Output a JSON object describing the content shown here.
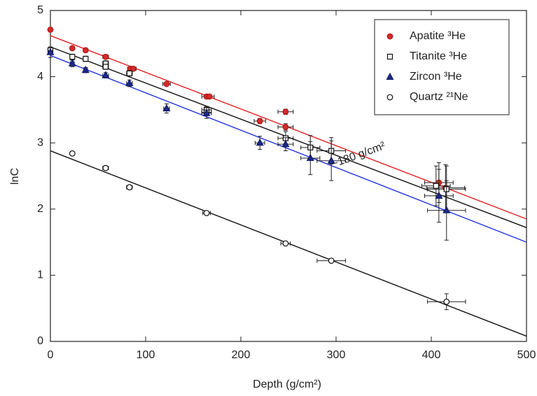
{
  "chart_data": {
    "type": "scatter",
    "xlabel": "Depth (g/cm²)",
    "ylabel": "lnC",
    "xlim": [
      0,
      500
    ],
    "ylim": [
      0,
      5
    ],
    "xticks": [
      0,
      100,
      200,
      300,
      400,
      500
    ],
    "yticks": [
      0,
      1,
      2,
      3,
      4,
      5
    ],
    "legend": "upper right",
    "annotation": "~180 g/cm²",
    "series": [
      {
        "name": "Apatite ³He",
        "color": "#b01818",
        "fill": "#d42a2a",
        "marker": "circle",
        "x": [
          0,
          23,
          37,
          58,
          84,
          87,
          122,
          164,
          167,
          220,
          247,
          247,
          408,
          415
        ],
        "values": [
          4.71,
          4.43,
          4.4,
          4.3,
          4.12,
          4.12,
          3.89,
          3.7,
          3.7,
          3.33,
          3.47,
          3.24,
          2.4,
          2.32
        ],
        "xerr": [
          2,
          2,
          2,
          3,
          3,
          3,
          4,
          5,
          5,
          6,
          8,
          8,
          15,
          20
        ],
        "yerr": [
          0.03,
          0.03,
          0.03,
          0.03,
          0.03,
          0.03,
          0.03,
          0.03,
          0.03,
          0.04,
          0.04,
          0.05,
          0.3,
          0.35
        ],
        "fit": {
          "color": "#e02020",
          "x": [
            0,
            500
          ],
          "values": [
            4.62,
            1.85
          ]
        }
      },
      {
        "name": "Titanite ³He",
        "color": "#111111",
        "fill": "#ffffff",
        "marker": "square",
        "x": [
          0,
          23,
          37,
          58,
          58,
          83,
          164,
          164,
          247,
          273,
          295,
          405,
          416
        ],
        "values": [
          4.4,
          4.3,
          4.27,
          4.2,
          4.15,
          4.05,
          3.5,
          3.46,
          3.07,
          2.93,
          2.88,
          2.35,
          2.3
        ],
        "xerr": [
          2,
          2,
          2,
          3,
          3,
          3,
          5,
          5,
          8,
          10,
          15,
          15,
          20
        ],
        "yerr": [
          0.05,
          0.04,
          0.04,
          0.04,
          0.04,
          0.04,
          0.05,
          0.05,
          0.1,
          0.18,
          0.2,
          0.3,
          0.35
        ],
        "fit": {
          "color": "#111111",
          "x": [
            0,
            500
          ],
          "values": [
            4.45,
            1.72
          ]
        }
      },
      {
        "name": "Zircon ³He",
        "color": "#111a66",
        "fill": "#1c2a8c",
        "marker": "triangle",
        "x": [
          0,
          23,
          37,
          58,
          83,
          122,
          164,
          220,
          247,
          273,
          295,
          408,
          416
        ],
        "values": [
          4.37,
          4.2,
          4.1,
          4.02,
          3.9,
          3.52,
          3.45,
          3.0,
          2.98,
          2.77,
          2.73,
          2.2,
          1.98
        ],
        "xerr": [
          2,
          2,
          2,
          3,
          3,
          3,
          5,
          5,
          8,
          10,
          15,
          15,
          20
        ],
        "yerr": [
          0.08,
          0.05,
          0.04,
          0.04,
          0.05,
          0.07,
          0.08,
          0.1,
          0.1,
          0.25,
          0.3,
          0.4,
          0.45
        ],
        "fit": {
          "color": "#2233dd",
          "x": [
            0,
            500
          ],
          "values": [
            4.32,
            1.5
          ]
        }
      },
      {
        "name": "Quartz ²¹Ne",
        "color": "#111111",
        "fill": "#ffffff",
        "marker": "circle",
        "x": [
          23,
          58,
          83,
          164,
          247,
          295,
          416
        ],
        "values": [
          2.84,
          2.62,
          2.33,
          1.94,
          1.48,
          1.22,
          0.6
        ],
        "xerr": [
          2,
          3,
          3,
          4,
          5,
          15,
          20
        ],
        "yerr": [
          0.03,
          0.03,
          0.03,
          0.03,
          0.03,
          0.03,
          0.12
        ],
        "fit": {
          "color": "#111111",
          "x": [
            0,
            500
          ],
          "values": [
            2.88,
            0.08
          ]
        }
      }
    ]
  }
}
